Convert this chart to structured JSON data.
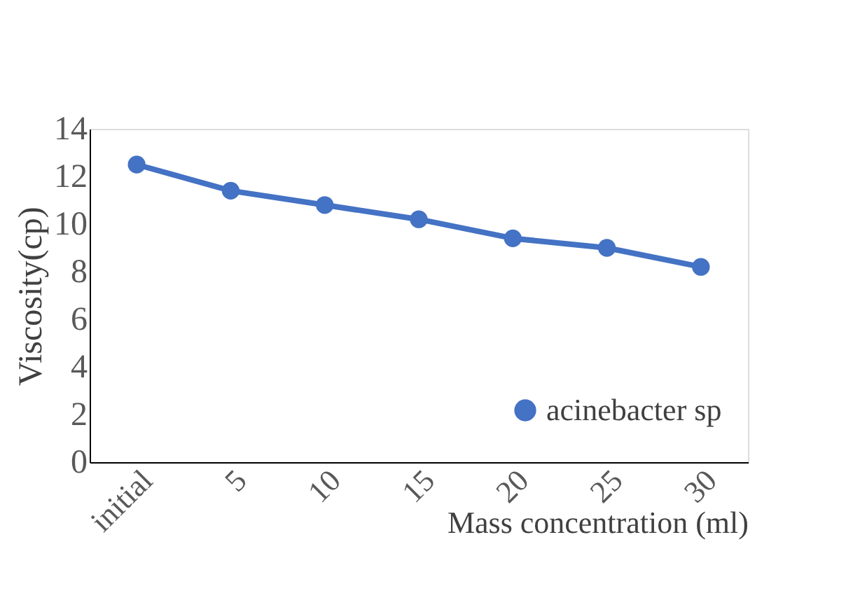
{
  "chart_data": {
    "type": "line",
    "xlabel": "Mass concentration (ml)",
    "ylabel": "Viscosity(cp)",
    "categories": [
      "initial",
      "5",
      "10",
      "15",
      "20",
      "25",
      "30"
    ],
    "series": [
      {
        "name": "acinebacter sp",
        "color": "#4472c4",
        "values": [
          12.5,
          11.4,
          10.8,
          10.2,
          9.4,
          9.0,
          8.2
        ]
      }
    ],
    "ylim": [
      0,
      14
    ],
    "yticks": [
      0,
      2,
      4,
      6,
      8,
      10,
      12,
      14
    ],
    "grid": false,
    "legend": "right",
    "marker": "circle"
  }
}
